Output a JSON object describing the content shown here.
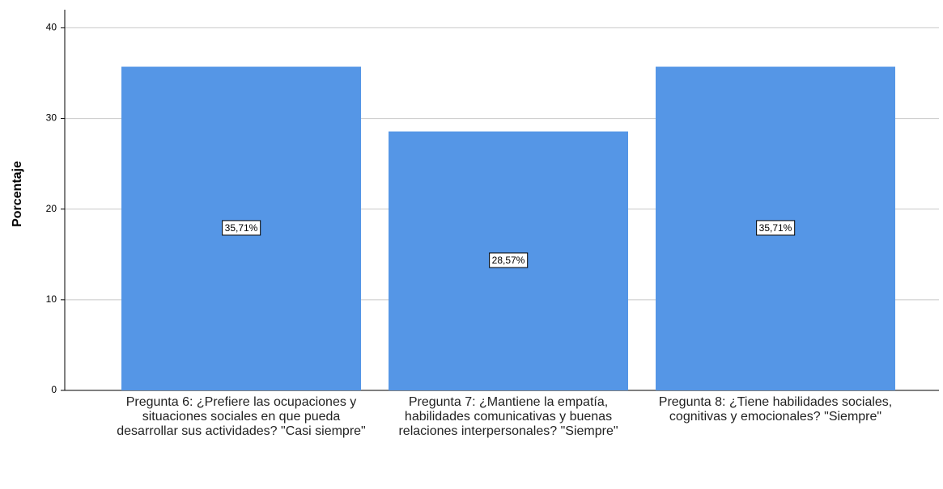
{
  "chart_data": {
    "type": "bar",
    "y_label": "Porcentaje",
    "categories": [
      "Pregunta 6: ¿Prefiere las ocupaciones y situaciones sociales en que pueda desarrollar sus actividades? \"Casi siempre\"",
      "Pregunta 7: ¿Mantiene la empatía, habilidades comunicativas y buenas relaciones interpersonales? \"Siempre\"",
      "Pregunta 8: ¿Tiene habilidades sociales, cognitivas y emocionales? \"Siempre\""
    ],
    "values": [
      35.71,
      28.57,
      35.71
    ],
    "value_labels": [
      "35,71%",
      "28,57%",
      "35,71%"
    ],
    "color": "#5596e6",
    "ylim": [
      0,
      42
    ],
    "yticks": [
      0,
      10,
      20,
      30,
      40
    ],
    "grid": true
  }
}
